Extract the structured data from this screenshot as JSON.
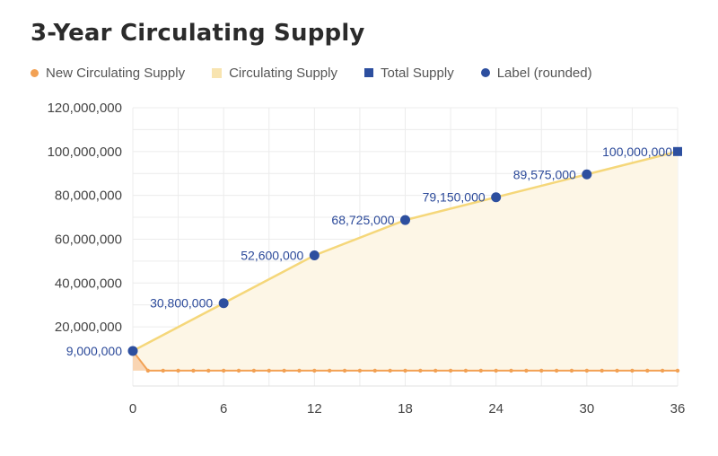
{
  "chart_data": {
    "type": "line",
    "title": "3-Year Circulating Supply",
    "xlabel": "",
    "ylabel": "",
    "x_ticks": [
      0,
      6,
      12,
      18,
      24,
      30,
      36
    ],
    "y_ticks": [
      "20,000,000",
      "40,000,000",
      "60,000,000",
      "80,000,000",
      "100,000,000",
      "120,000,000"
    ],
    "y_tick_values": [
      20000000,
      40000000,
      60000000,
      80000000,
      100000000,
      120000000
    ],
    "xlim": [
      0,
      36
    ],
    "ylim": [
      -7000000,
      120000000
    ],
    "grid": true,
    "legend_position": "top",
    "series": [
      {
        "name": "New Circulating Supply",
        "type": "line",
        "color": "#f2a154",
        "x": [
          0,
          1,
          2,
          3,
          4,
          5,
          6,
          7,
          8,
          9,
          10,
          11,
          12,
          13,
          14,
          15,
          16,
          17,
          18,
          19,
          20,
          21,
          22,
          23,
          24,
          25,
          26,
          27,
          28,
          29,
          30,
          31,
          32,
          33,
          34,
          35,
          36
        ],
        "values": [
          9000000,
          0,
          0,
          0,
          0,
          0,
          0,
          0,
          0,
          0,
          0,
          0,
          0,
          0,
          0,
          0,
          0,
          0,
          0,
          0,
          0,
          0,
          0,
          0,
          0,
          0,
          0,
          0,
          0,
          0,
          0,
          0,
          0,
          0,
          0,
          0,
          0
        ]
      },
      {
        "name": "Circulating Supply",
        "type": "area",
        "color": "#f5d77a",
        "fill": "#fdf6e6",
        "x": [
          0,
          6,
          12,
          18,
          24,
          30,
          36
        ],
        "values": [
          9000000,
          30800000,
          52600000,
          68725000,
          79150000,
          89575000,
          100000000
        ]
      },
      {
        "name": "Total Supply",
        "type": "scatter",
        "marker": "square",
        "color": "#2d4f9f",
        "x": [
          36
        ],
        "values": [
          100000000
        ]
      },
      {
        "name": "Label (rounded)",
        "type": "scatter",
        "marker": "circle",
        "color": "#2d4f9f",
        "x": [
          0,
          6,
          12,
          18,
          24,
          30
        ],
        "values": [
          9000000,
          30800000,
          52600000,
          68725000,
          79150000,
          89575000
        ],
        "labels": [
          "9,000,000",
          "30,800,000",
          "52,600,000",
          "68,725,000",
          "79,150,000",
          "89,575,000"
        ]
      }
    ],
    "total_label": "100,000,000"
  }
}
